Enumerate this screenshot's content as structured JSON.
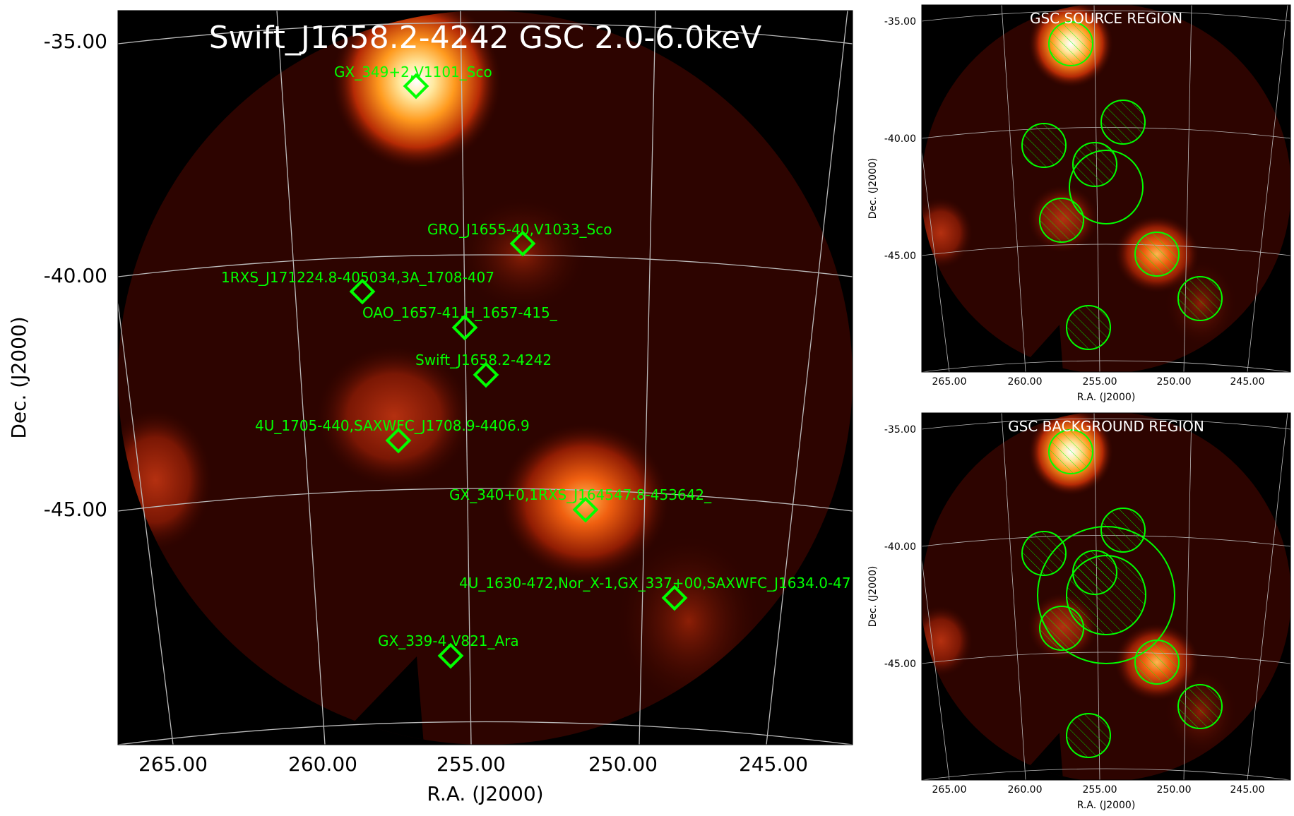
{
  "main": {
    "title": "Swift_J1658.2-4242 GSC 2.0-6.0keV",
    "xlabel": "R.A. (J2000)",
    "ylabel": "Dec. (J2000)",
    "x_ticks": [
      "265.00",
      "260.00",
      "255.00",
      "250.00",
      "245.00"
    ],
    "y_ticks": [
      "-35.00",
      "-40.00",
      "-45.00"
    ],
    "sources": [
      {
        "label": "GX_349+2,V1101_Sco"
      },
      {
        "label": "GRO_J1655-40,V1033_Sco"
      },
      {
        "label": "1RXS_J171224.8-405034,3A_1708-407"
      },
      {
        "label": "OAO_1657-41,H_1657-415_"
      },
      {
        "label": "Swift_J1658.2-4242"
      },
      {
        "label": "4U_1705-440,SAXWFC_J1708.9-4406.9"
      },
      {
        "label": "GX_340+0,1RXS_J164547.8-453642_"
      },
      {
        "label": "4U_1630-472,Nor_X-1,GX_337+00,SAXWFC_J1634.0-47"
      },
      {
        "label": "GX_339-4,V821_Ara"
      }
    ]
  },
  "source_panel": {
    "title": "GSC SOURCE REGION",
    "xlabel": "R.A. (J2000)",
    "ylabel": "Dec. (J2000)",
    "x_ticks": [
      "265.00",
      "260.00",
      "255.00",
      "250.00",
      "245.00"
    ],
    "y_ticks": [
      "-35.00",
      "-40.00",
      "-45.00"
    ]
  },
  "background_panel": {
    "title": "GSC BACKGROUND REGION",
    "xlabel": "R.A. (J2000)",
    "ylabel": "Dec. (J2000)",
    "x_ticks": [
      "265.00",
      "260.00",
      "255.00",
      "250.00",
      "245.00"
    ],
    "y_ticks": [
      "-35.00",
      "-40.00",
      "-45.00"
    ]
  },
  "colors": {
    "region": "#00ff00",
    "grid": "#bbbbbb",
    "background": "#000000"
  }
}
